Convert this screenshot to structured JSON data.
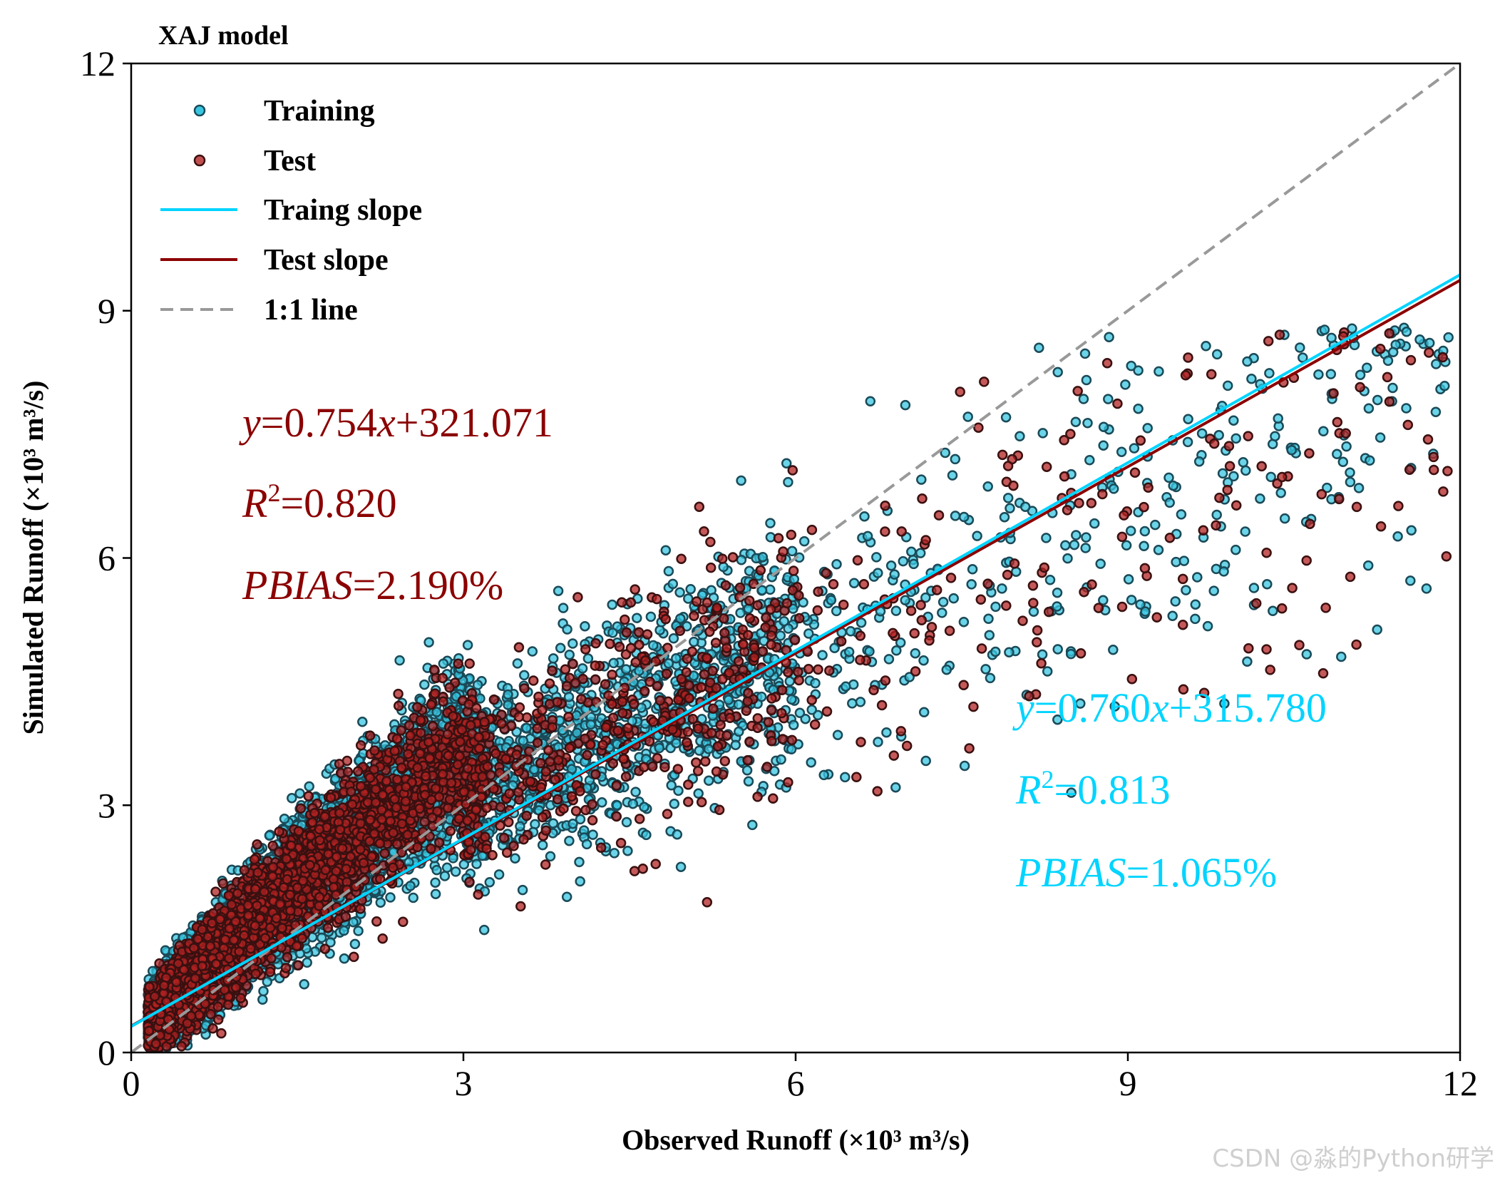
{
  "chart_data": {
    "type": "scatter",
    "title": "XAJ model",
    "xlabel": "Observed Runoff (×10³ m³/s)",
    "ylabel": "Simulated Runoff (×10³ m³/s)",
    "xlim": [
      0,
      12
    ],
    "ylim": [
      0,
      12
    ],
    "xticks": [
      "0",
      "3",
      "6",
      "9",
      "12"
    ],
    "yticks": [
      "0",
      "3",
      "6",
      "9",
      "12"
    ],
    "legend_position": "top-left",
    "legend": [
      {
        "label": "Training",
        "kind": "marker",
        "color": "#00ccf0"
      },
      {
        "label": "Test",
        "kind": "marker",
        "color": "#c05050"
      },
      {
        "label": "Traing slope",
        "kind": "line",
        "color": "#00d4ff"
      },
      {
        "label": "Test slope",
        "kind": "line",
        "color": "#8b0000"
      },
      {
        "label": "1:1 line",
        "kind": "dashed",
        "color": "#999999"
      }
    ],
    "series": [
      {
        "name": "Training",
        "marker_face": "#39c5e0",
        "marker_edge": "#1a4a58",
        "approx_points": 9000
      },
      {
        "name": "Test",
        "marker_face": "#b22222",
        "marker_edge": "#3a1010",
        "approx_points": 4000
      }
    ],
    "fit_lines": [
      {
        "name": "Traing slope",
        "slope": 0.76,
        "intercept": 0.31578,
        "color": "#00d4ff"
      },
      {
        "name": "Test slope",
        "slope": 0.754,
        "intercept": 0.321071,
        "color": "#8b0000"
      },
      {
        "name": "1:1 line",
        "slope": 1.0,
        "intercept": 0.0,
        "color": "#999999",
        "dashed": true
      }
    ],
    "annotations": {
      "test": {
        "color": "#8b0000",
        "equation": {
          "y": "y",
          "eq": "=",
          "rest": "0.754",
          "x": "x",
          "tail": "+321.071"
        },
        "r2": {
          "r": "R",
          "sup": "2",
          "rest": "=0.820"
        },
        "pbias": {
          "name": "PBIAS",
          "rest": "=2.190%"
        }
      },
      "training": {
        "color": "#00d4ff",
        "equation": {
          "y": "y",
          "eq": "=",
          "rest": "0.760",
          "x": "x",
          "tail": "+315.780"
        },
        "r2": {
          "r": "R",
          "sup": "2",
          "rest": "=0.813"
        },
        "pbias": {
          "name": "PBIAS",
          "rest": "=1.065%"
        }
      }
    }
  },
  "watermark": "CSDN @淼的Python研学"
}
